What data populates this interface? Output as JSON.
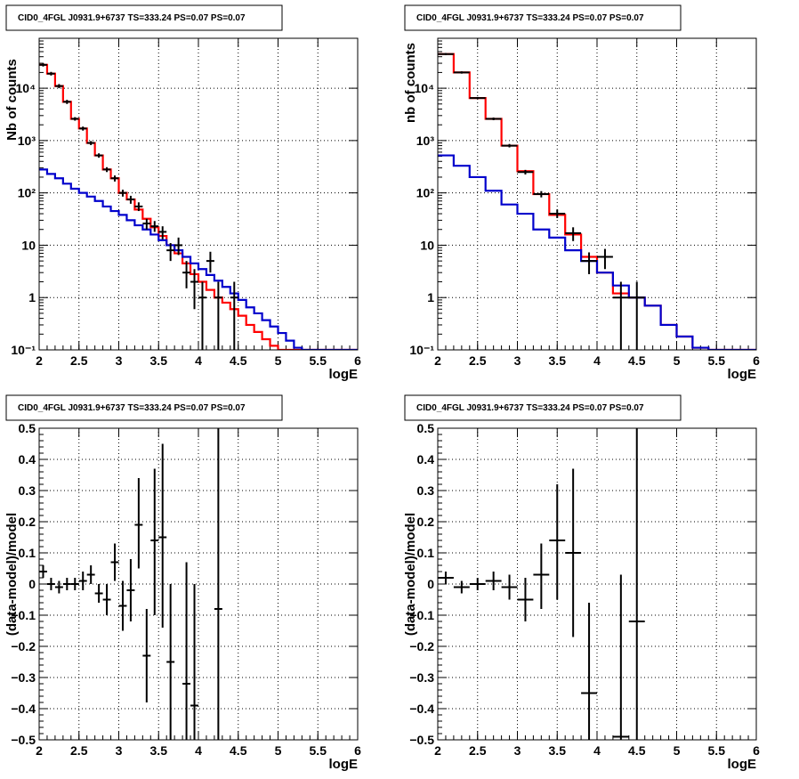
{
  "chart_data": [
    {
      "id": "p1",
      "type": "line",
      "title": "CID0_4FGL J0931.9+6737 TS=333.24 PS=0.07 PS=0.07",
      "xlabel": "logE",
      "ylabel": "Nb of counts",
      "xlim": [
        2,
        6
      ],
      "ylim": [
        0.1,
        90000
      ],
      "yscale": "log",
      "grid": true,
      "xticks": [
        2,
        2.5,
        3,
        3.5,
        4,
        4.5,
        5,
        5.5,
        6
      ],
      "xtick_labels": [
        "2",
        "2.5",
        "3",
        "3.5",
        "4",
        "4.5",
        "5",
        "5.5",
        "6"
      ],
      "yticks": [
        0.1,
        1,
        10,
        100,
        1000,
        10000
      ],
      "ytick_labels": [
        "10⁻¹",
        "1",
        "10",
        "10²",
        "10³",
        "10⁴"
      ],
      "series": [
        {
          "kind": "step",
          "color": "#ff0000",
          "edges": [
            2,
            2.1,
            2.2,
            2.3,
            2.4,
            2.5,
            2.6,
            2.7,
            2.8,
            2.9,
            3.0,
            3.1,
            3.2,
            3.3,
            3.4,
            3.5,
            3.6,
            3.7,
            3.8,
            3.9,
            4.0,
            4.1,
            4.2,
            4.3,
            4.4,
            4.5,
            4.6,
            4.7,
            4.8,
            4.9,
            5.0,
            5.1,
            5.2,
            5.3,
            5.4,
            5.5,
            5.6,
            5.7,
            5.8,
            5.9,
            6.0
          ],
          "values": [
            28000,
            19000,
            11000,
            5500,
            2600,
            1700,
            900,
            520,
            280,
            190,
            100,
            75,
            48,
            32,
            22,
            15,
            10,
            7,
            4.5,
            2.8,
            2.0,
            1.4,
            1.0,
            0.8,
            0.6,
            0.45,
            0.3,
            0.22,
            0.16,
            0.12,
            0.1,
            0.1,
            0.1,
            0.1,
            0.1,
            0.1,
            0.1,
            0.1,
            0.1,
            0.1
          ]
        },
        {
          "kind": "step",
          "color": "#0000cc",
          "edges": [
            2,
            2.1,
            2.2,
            2.3,
            2.4,
            2.5,
            2.6,
            2.7,
            2.8,
            2.9,
            3.0,
            3.1,
            3.2,
            3.3,
            3.4,
            3.5,
            3.6,
            3.7,
            3.8,
            3.9,
            4.0,
            4.1,
            4.2,
            4.3,
            4.4,
            4.5,
            4.6,
            4.7,
            4.8,
            4.9,
            5.0,
            5.1,
            5.2,
            5.3,
            5.4,
            5.5,
            5.6,
            5.7,
            5.8,
            5.9,
            6.0
          ],
          "values": [
            280,
            230,
            190,
            150,
            120,
            100,
            85,
            70,
            55,
            45,
            38,
            30,
            24,
            20,
            16,
            12.5,
            10,
            8,
            6,
            4.5,
            3.5,
            2.7,
            2.1,
            1.6,
            1.2,
            0.9,
            0.65,
            0.5,
            0.37,
            0.28,
            0.21,
            0.15,
            0.11,
            0.1,
            0.1,
            0.1,
            0.1,
            0.1,
            0.1,
            0.1
          ]
        }
      ],
      "points": [
        {
          "x": 2.05,
          "y": 28000,
          "lo": 26000,
          "hi": 30000
        },
        {
          "x": 2.15,
          "y": 19000,
          "lo": 17500,
          "hi": 20500
        },
        {
          "x": 2.25,
          "y": 11000,
          "lo": 10000,
          "hi": 12000
        },
        {
          "x": 2.35,
          "y": 5500,
          "lo": 5000,
          "hi": 6000
        },
        {
          "x": 2.45,
          "y": 2600,
          "lo": 2400,
          "hi": 2800
        },
        {
          "x": 2.55,
          "y": 1700,
          "lo": 1550,
          "hi": 1850
        },
        {
          "x": 2.65,
          "y": 900,
          "lo": 820,
          "hi": 980
        },
        {
          "x": 2.75,
          "y": 520,
          "lo": 470,
          "hi": 570
        },
        {
          "x": 2.85,
          "y": 280,
          "lo": 250,
          "hi": 310
        },
        {
          "x": 2.95,
          "y": 190,
          "lo": 165,
          "hi": 215
        },
        {
          "x": 3.05,
          "y": 100,
          "lo": 85,
          "hi": 115
        },
        {
          "x": 3.15,
          "y": 75,
          "lo": 62,
          "hi": 88
        },
        {
          "x": 3.25,
          "y": 55,
          "lo": 45,
          "hi": 66
        },
        {
          "x": 3.35,
          "y": 26,
          "lo": 20,
          "hi": 32
        },
        {
          "x": 3.45,
          "y": 23,
          "lo": 18,
          "hi": 29
        },
        {
          "x": 3.55,
          "y": 18,
          "lo": 13,
          "hi": 23
        },
        {
          "x": 3.65,
          "y": 8,
          "lo": 5,
          "hi": 11
        },
        {
          "x": 3.75,
          "y": 10,
          "lo": 6.5,
          "hi": 14
        },
        {
          "x": 3.85,
          "y": 3,
          "lo": 1.5,
          "hi": 5
        },
        {
          "x": 3.95,
          "y": 2,
          "lo": 0.6,
          "hi": 3.5
        },
        {
          "x": 4.05,
          "y": 1,
          "lo": 0.1,
          "hi": 2
        },
        {
          "x": 4.15,
          "y": 5,
          "lo": 3,
          "hi": 7.5
        },
        {
          "x": 4.25,
          "y": 1,
          "lo": 0.1,
          "hi": 2
        },
        {
          "x": 4.45,
          "y": 1,
          "lo": 0.1,
          "hi": 2
        }
      ]
    },
    {
      "id": "p2",
      "type": "line",
      "title": "CID0_4FGL J0931.9+6737 TS=333.24 PS=0.07 PS=0.07",
      "xlabel": "logE",
      "ylabel": "nb of counts",
      "xlim": [
        2,
        6
      ],
      "ylim": [
        0.1,
        90000
      ],
      "yscale": "log",
      "grid": true,
      "xticks": [
        2,
        2.5,
        3,
        3.5,
        4,
        4.5,
        5,
        5.5,
        6
      ],
      "xtick_labels": [
        "2",
        "2.5",
        "3",
        "3.5",
        "4",
        "4.5",
        "5",
        "5.5",
        "6"
      ],
      "yticks": [
        0.1,
        1,
        10,
        100,
        1000,
        10000
      ],
      "ytick_labels": [
        "10⁻¹",
        "1",
        "10",
        "10²",
        "10³",
        "10⁴"
      ],
      "series": [
        {
          "kind": "step",
          "color": "#ff0000",
          "edges": [
            2,
            2.2,
            2.4,
            2.6,
            2.8,
            3.0,
            3.2,
            3.4,
            3.6,
            3.8,
            4.0,
            4.2,
            4.4,
            4.6,
            4.8,
            5.0,
            5.2,
            5.4,
            5.6,
            5.8,
            6.0
          ],
          "values": [
            45000,
            20000,
            6500,
            2600,
            800,
            260,
            95,
            38,
            16,
            6,
            3,
            1.2,
            1.0,
            0.7,
            0.3,
            0.18,
            0.11,
            0.1,
            0.1,
            0.1
          ]
        },
        {
          "kind": "step",
          "color": "#0000cc",
          "edges": [
            2,
            2.2,
            2.4,
            2.6,
            2.8,
            3.0,
            3.2,
            3.4,
            3.6,
            3.8,
            4.0,
            4.2,
            4.4,
            4.6,
            4.8,
            5.0,
            5.2,
            5.4,
            5.6,
            5.8,
            6.0
          ],
          "values": [
            520,
            330,
            200,
            110,
            60,
            40,
            20,
            14,
            8,
            5,
            3,
            1.7,
            1.0,
            0.7,
            0.3,
            0.18,
            0.11,
            0.1,
            0.1,
            0.1
          ]
        }
      ],
      "points": [
        {
          "x": 2.1,
          "y": 45000,
          "lo": 43000,
          "hi": 47000
        },
        {
          "x": 2.3,
          "y": 20000,
          "lo": 19000,
          "hi": 21000
        },
        {
          "x": 2.5,
          "y": 6500,
          "lo": 6200,
          "hi": 6800
        },
        {
          "x": 2.7,
          "y": 2600,
          "lo": 2450,
          "hi": 2750
        },
        {
          "x": 2.9,
          "y": 800,
          "lo": 740,
          "hi": 860
        },
        {
          "x": 3.1,
          "y": 250,
          "lo": 225,
          "hi": 275
        },
        {
          "x": 3.3,
          "y": 95,
          "lo": 82,
          "hi": 108
        },
        {
          "x": 3.5,
          "y": 40,
          "lo": 33,
          "hi": 48
        },
        {
          "x": 3.7,
          "y": 17,
          "lo": 12,
          "hi": 22
        },
        {
          "x": 3.9,
          "y": 5,
          "lo": 2.8,
          "hi": 7.3
        },
        {
          "x": 4.1,
          "y": 6,
          "lo": 3.5,
          "hi": 8.5
        },
        {
          "x": 4.3,
          "y": 1,
          "lo": 0.1,
          "hi": 2
        },
        {
          "x": 4.5,
          "y": 1,
          "lo": 0.1,
          "hi": 2
        }
      ]
    },
    {
      "id": "p3",
      "type": "scatter",
      "title": "CID0_4FGL J0931.9+6737 TS=333.24 PS=0.07 PS=0.07",
      "xlabel": "logE",
      "ylabel": "(data-model)/model",
      "xlim": [
        2,
        6
      ],
      "ylim": [
        -0.5,
        0.5
      ],
      "yscale": "linear",
      "grid": true,
      "xticks": [
        2,
        2.5,
        3,
        3.5,
        4,
        4.5,
        5,
        5.5,
        6
      ],
      "xtick_labels": [
        "2",
        "2.5",
        "3",
        "3.5",
        "4",
        "4.5",
        "5",
        "5.5",
        "6"
      ],
      "yticks": [
        -0.5,
        -0.4,
        -0.3,
        -0.2,
        -0.1,
        0,
        0.1,
        0.2,
        0.3,
        0.4,
        0.5
      ],
      "ytick_labels": [
        "−0.5",
        "−0.4",
        "−0.3",
        "−0.2",
        "−0.1",
        "0",
        "0.1",
        "0.2",
        "0.3",
        "0.4",
        "0.5"
      ],
      "series": [],
      "points": [
        {
          "x": 2.05,
          "y": 0.04,
          "lo": 0.02,
          "hi": 0.06
        },
        {
          "x": 2.15,
          "y": 0.0,
          "lo": -0.02,
          "hi": 0.02
        },
        {
          "x": 2.25,
          "y": -0.01,
          "lo": -0.03,
          "hi": 0.01
        },
        {
          "x": 2.35,
          "y": 0.0,
          "lo": -0.02,
          "hi": 0.02
        },
        {
          "x": 2.45,
          "y": 0.0,
          "lo": -0.02,
          "hi": 0.02
        },
        {
          "x": 2.55,
          "y": 0.01,
          "lo": -0.02,
          "hi": 0.04
        },
        {
          "x": 2.65,
          "y": 0.03,
          "lo": 0.0,
          "hi": 0.06
        },
        {
          "x": 2.75,
          "y": -0.03,
          "lo": -0.06,
          "hi": 0.0
        },
        {
          "x": 2.85,
          "y": -0.05,
          "lo": -0.1,
          "hi": 0.0
        },
        {
          "x": 2.95,
          "y": 0.07,
          "lo": 0.01,
          "hi": 0.13
        },
        {
          "x": 3.05,
          "y": -0.07,
          "lo": -0.15,
          "hi": 0.01
        },
        {
          "x": 3.15,
          "y": -0.02,
          "lo": -0.12,
          "hi": 0.08
        },
        {
          "x": 3.25,
          "y": 0.19,
          "lo": 0.05,
          "hi": 0.34
        },
        {
          "x": 3.35,
          "y": -0.23,
          "lo": -0.38,
          "hi": -0.08
        },
        {
          "x": 3.45,
          "y": 0.14,
          "lo": -0.1,
          "hi": 0.37
        },
        {
          "x": 3.55,
          "y": 0.15,
          "lo": -0.14,
          "hi": 0.45
        },
        {
          "x": 3.65,
          "y": -0.25,
          "lo": -0.5,
          "hi": 0.0
        },
        {
          "x": 3.85,
          "y": -0.32,
          "lo": -0.5,
          "hi": 0.07
        },
        {
          "x": 3.95,
          "y": -0.39,
          "lo": -0.5,
          "hi": 0.0
        },
        {
          "x": 4.25,
          "y": -0.08,
          "lo": -0.5,
          "hi": 0.5
        }
      ]
    },
    {
      "id": "p4",
      "type": "scatter",
      "title": "CID0_4FGL J0931.9+6737 TS=333.24 PS=0.07 PS=0.07",
      "xlabel": "logE",
      "ylabel": "(data-model)/model",
      "xlim": [
        2,
        6
      ],
      "ylim": [
        -0.5,
        0.5
      ],
      "yscale": "linear",
      "grid": true,
      "xticks": [
        2,
        2.5,
        3,
        3.5,
        4,
        4.5,
        5,
        5.5,
        6
      ],
      "xtick_labels": [
        "2",
        "2.5",
        "3",
        "3.5",
        "4",
        "4.5",
        "5",
        "5.5",
        "6"
      ],
      "yticks": [
        -0.5,
        -0.4,
        -0.3,
        -0.2,
        -0.1,
        0,
        0.1,
        0.2,
        0.3,
        0.4,
        0.5
      ],
      "ytick_labels": [
        "−0.5",
        "−0.4",
        "−0.3",
        "−0.2",
        "−0.1",
        "0",
        "0.1",
        "0.2",
        "0.3",
        "0.4",
        "0.5"
      ],
      "series": [],
      "points": [
        {
          "x": 2.1,
          "y": 0.02,
          "lo": 0.0,
          "hi": 0.04
        },
        {
          "x": 2.3,
          "y": -0.01,
          "lo": -0.03,
          "hi": 0.01
        },
        {
          "x": 2.5,
          "y": 0.0,
          "lo": -0.02,
          "hi": 0.02
        },
        {
          "x": 2.7,
          "y": 0.01,
          "lo": -0.02,
          "hi": 0.04
        },
        {
          "x": 2.9,
          "y": -0.01,
          "lo": -0.05,
          "hi": 0.03
        },
        {
          "x": 3.1,
          "y": -0.05,
          "lo": -0.12,
          "hi": 0.02
        },
        {
          "x": 3.3,
          "y": 0.03,
          "lo": -0.08,
          "hi": 0.13
        },
        {
          "x": 3.5,
          "y": 0.14,
          "lo": -0.05,
          "hi": 0.32
        },
        {
          "x": 3.7,
          "y": 0.1,
          "lo": -0.17,
          "hi": 0.37
        },
        {
          "x": 3.9,
          "y": -0.35,
          "lo": -0.5,
          "hi": -0.06
        },
        {
          "x": 4.3,
          "y": -0.49,
          "lo": -0.5,
          "hi": 0.03
        },
        {
          "x": 4.5,
          "y": -0.12,
          "lo": -0.5,
          "hi": 0.5
        }
      ]
    }
  ]
}
